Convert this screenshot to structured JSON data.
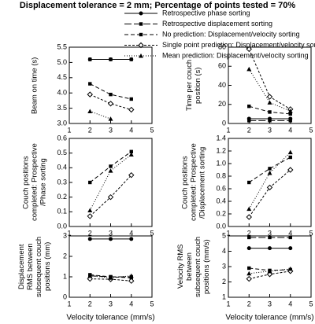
{
  "title": "Displacement tolerance = 2 mm; Percentage of points tested = 70%",
  "legend": [
    {
      "name": "Retrospective phase sorting",
      "color": "#000000",
      "dash": "none",
      "marker": "circle"
    },
    {
      "name": "Retrospective displacement sorting",
      "color": "#000000",
      "dash": "9,3",
      "marker": "square"
    },
    {
      "name": "No prediction: Displacement/velocity sorting",
      "color": "#000000",
      "dash": "5,3",
      "marker": "square"
    },
    {
      "name": "Single point prediction: Displacement/velocity sorting",
      "color": "#000000",
      "dash": "3,2",
      "marker": "diamond-open"
    },
    {
      "name": "Mean prediction: Displacement/velocity sorting",
      "color": "#000000",
      "dash": "1,2",
      "marker": "triangle"
    }
  ],
  "chart_data": [
    {
      "type": "line",
      "ylabel": "Beam on time (s)",
      "x": [
        2,
        3,
        4
      ],
      "xlim": [
        1,
        5
      ],
      "xticks": [
        1,
        2,
        3,
        4,
        5
      ],
      "ylim": [
        3,
        5.5
      ],
      "yticks": [
        {
          "value": 3,
          "label": "3.0"
        },
        3.5,
        {
          "value": 4,
          "label": "4.0"
        },
        4.5,
        {
          "value": 5,
          "label": "5.0"
        },
        5.5
      ],
      "series": [
        {
          "values": [
            5.1,
            5.1,
            5.1
          ]
        },
        {
          "values": [
            5.1,
            5.1,
            5.1
          ]
        },
        {
          "values": [
            4.3,
            3.95,
            3.8
          ]
        },
        {
          "values": [
            3.95,
            3.65,
            3.45
          ]
        },
        {
          "values": [
            3.4,
            3.15,
            null
          ]
        }
      ]
    },
    {
      "type": "line",
      "ylabel": "Time per couch position (s)",
      "x": [
        2,
        3,
        4
      ],
      "xlim": [
        1,
        5
      ],
      "xticks": [
        1,
        2,
        3,
        4,
        5
      ],
      "ylim": [
        0,
        80
      ],
      "yticks": [
        0,
        20,
        40,
        60,
        80
      ],
      "series": [
        {
          "values": [
            5,
            5,
            5
          ]
        },
        {
          "values": [
            3,
            3,
            3
          ]
        },
        {
          "values": [
            18,
            12,
            10
          ]
        },
        {
          "values": [
            78,
            28,
            15
          ]
        },
        {
          "values": [
            57,
            22,
            13
          ]
        }
      ]
    },
    {
      "type": "line",
      "ylabel": "Couch positions completed: Prospective /Phase sorting",
      "x": [
        2,
        3,
        4
      ],
      "xlim": [
        1,
        5
      ],
      "xticks": [
        1,
        2,
        3,
        4,
        5
      ],
      "ylim": [
        0,
        0.6
      ],
      "yticks": [
        {
          "value": 0,
          "label": "0.0"
        },
        0.1,
        0.2,
        0.3,
        0.4,
        0.5,
        0.6
      ],
      "series": [
        {
          "values": [
            null,
            null,
            null
          ]
        },
        {
          "values": [
            null,
            null,
            null
          ]
        },
        {
          "values": [
            0.3,
            0.41,
            0.51
          ]
        },
        {
          "values": [
            0.07,
            0.2,
            0.35
          ]
        },
        {
          "values": [
            0.11,
            0.38,
            0.49
          ]
        }
      ]
    },
    {
      "type": "line",
      "ylabel": "Couch positions completed: Prospective /Displacement sorting",
      "x": [
        2,
        3,
        4
      ],
      "xlim": [
        1,
        5
      ],
      "xticks": [
        1,
        2,
        3,
        4,
        5
      ],
      "ylim": [
        0,
        1.4
      ],
      "yticks": [
        {
          "value": 0,
          "label": "0.0"
        },
        0.2,
        0.4,
        0.6,
        0.8,
        {
          "value": 1,
          "label": "1.0"
        },
        1.2,
        1.4
      ],
      "series": [
        {
          "values": [
            null,
            null,
            null
          ]
        },
        {
          "values": [
            null,
            null,
            null
          ]
        },
        {
          "values": [
            0.7,
            0.92,
            1.1
          ]
        },
        {
          "values": [
            0.15,
            0.62,
            0.9
          ]
        },
        {
          "values": [
            0.28,
            0.85,
            1.18
          ]
        }
      ]
    },
    {
      "type": "line",
      "ylabel": "Displacement RMS between subsequent couch positions (mm)",
      "xlabel": "Velocity tolerance (mm/s)",
      "x": [
        2,
        3,
        4
      ],
      "xlim": [
        1,
        5
      ],
      "xticks": [
        1,
        2,
        3,
        4,
        5
      ],
      "ylim": [
        0,
        3
      ],
      "yticks": [
        0,
        1,
        2,
        3
      ],
      "series": [
        {
          "values": [
            2.85,
            2.85,
            2.85
          ]
        },
        {
          "values": [
            1.05,
            1.0,
            1.0
          ]
        },
        {
          "values": [
            1.1,
            1.0,
            0.95
          ]
        },
        {
          "values": [
            0.9,
            0.88,
            0.8
          ]
        },
        {
          "values": [
            1.05,
            0.95,
            1.05
          ]
        }
      ]
    },
    {
      "type": "line",
      "ylabel": "Velocity RMS between subsequent couch positions (mm/s)",
      "xlabel": "Velocity tolerance (mm/s)",
      "x": [
        2,
        3,
        4
      ],
      "xlim": [
        1,
        5
      ],
      "xticks": [
        1,
        2,
        3,
        4,
        5
      ],
      "ylim": [
        1,
        5
      ],
      "yticks": [
        1,
        2,
        3,
        4,
        5
      ],
      "series": [
        {
          "values": [
            4.2,
            4.2,
            4.2
          ]
        },
        {
          "values": [
            4.9,
            4.9,
            4.9
          ]
        },
        {
          "values": [
            2.9,
            2.75,
            2.8
          ]
        },
        {
          "values": [
            2.2,
            2.5,
            2.7
          ]
        },
        {
          "values": [
            2.55,
            2.7,
            2.85
          ]
        }
      ]
    }
  ]
}
